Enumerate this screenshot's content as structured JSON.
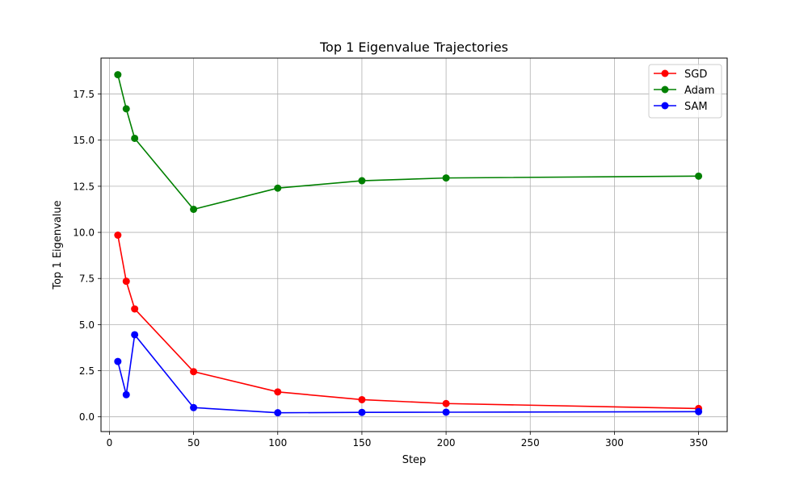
{
  "chart_data": {
    "type": "line",
    "title": "Top 1 Eigenvalue Trajectories",
    "xlabel": "Step",
    "ylabel": "Top 1 Eigenvalue",
    "xlim": [
      -5,
      367
    ],
    "ylim": [
      -0.8,
      19.45
    ],
    "xticks": [
      0,
      50,
      100,
      150,
      200,
      250,
      300,
      350
    ],
    "yticks": [
      0.0,
      2.5,
      5.0,
      7.5,
      10.0,
      12.5,
      15.0,
      17.5
    ],
    "ytick_labels": [
      "0.0",
      "2.5",
      "5.0",
      "7.5",
      "10.0",
      "12.5",
      "15.0",
      "17.5"
    ],
    "grid": true,
    "legend_position": "top-right",
    "x": [
      5,
      10,
      15,
      50,
      100,
      150,
      200,
      350
    ],
    "series": [
      {
        "name": "SGD",
        "color": "#ff0000",
        "values": [
          9.85,
          7.35,
          5.85,
          2.45,
          1.35,
          0.93,
          0.72,
          0.45
        ]
      },
      {
        "name": "Adam",
        "color": "#008000",
        "values": [
          18.55,
          16.7,
          15.1,
          11.25,
          12.4,
          12.8,
          12.95,
          13.05
        ]
      },
      {
        "name": "SAM",
        "color": "#0000ff",
        "values": [
          3.0,
          1.2,
          4.45,
          0.5,
          0.22,
          0.24,
          0.25,
          0.28
        ]
      }
    ]
  }
}
